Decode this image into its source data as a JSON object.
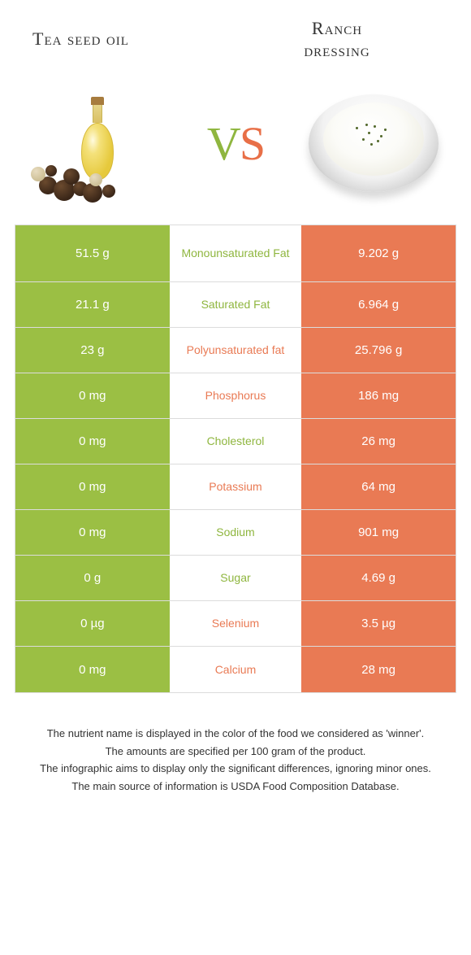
{
  "header": {
    "left_title": "Tea seed oil",
    "right_title": "Ranch\ndressing",
    "vs_v": "V",
    "vs_s": "S"
  },
  "colors": {
    "green": "#9bbf44",
    "orange": "#e97a54",
    "mid_green": "#8fb63f",
    "mid_orange": "#e97a54",
    "row_border": "#dcdcdc",
    "background": "#ffffff"
  },
  "table": {
    "type": "comparison-table",
    "left_column_bg": "#9bbf44",
    "right_column_bg": "#e97a54",
    "left_text_color": "#ffffff",
    "right_text_color": "#ffffff",
    "label_fontsize": 14,
    "value_fontsize": 15,
    "rows": [
      {
        "left": "51.5 g",
        "label": "Monounsaturated Fat",
        "winner": "green",
        "right": "9.202 g",
        "tall": true
      },
      {
        "left": "21.1 g",
        "label": "Saturated Fat",
        "winner": "green",
        "right": "6.964 g"
      },
      {
        "left": "23 g",
        "label": "Polyunsaturated fat",
        "winner": "orange",
        "right": "25.796 g"
      },
      {
        "left": "0 mg",
        "label": "Phosphorus",
        "winner": "orange",
        "right": "186 mg"
      },
      {
        "left": "0 mg",
        "label": "Cholesterol",
        "winner": "green",
        "right": "26 mg"
      },
      {
        "left": "0 mg",
        "label": "Potassium",
        "winner": "orange",
        "right": "64 mg"
      },
      {
        "left": "0 mg",
        "label": "Sodium",
        "winner": "green",
        "right": "901 mg"
      },
      {
        "left": "0 g",
        "label": "Sugar",
        "winner": "green",
        "right": "4.69 g"
      },
      {
        "left": "0 µg",
        "label": "Selenium",
        "winner": "orange",
        "right": "3.5 µg"
      },
      {
        "left": "0 mg",
        "label": "Calcium",
        "winner": "orange",
        "right": "28 mg"
      }
    ]
  },
  "footer": {
    "line1": "The nutrient name is displayed in the color of the food we considered as 'winner'.",
    "line2": "The amounts are specified per 100 gram of the product.",
    "line3": "The infographic aims to display only the significant differences, ignoring minor ones.",
    "line4": "The main source of information is USDA Food Composition Database."
  }
}
